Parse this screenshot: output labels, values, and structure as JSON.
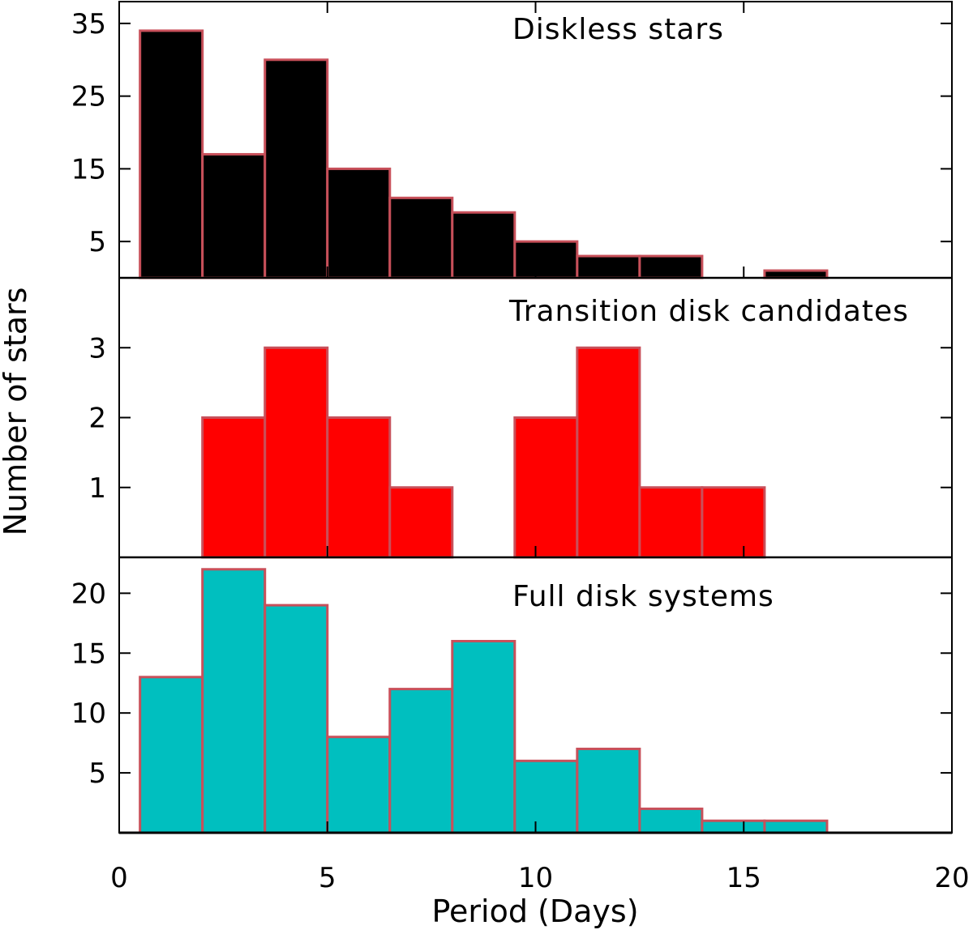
{
  "chart_data": {
    "type": "bar",
    "xlabel": "Period (Days)",
    "ylabel": "Number of stars",
    "xlim": [
      0,
      20
    ],
    "xticks": [
      "0",
      "5",
      "10",
      "15",
      "20"
    ],
    "bin_width": 1.5,
    "bin_edges": [
      0.5,
      2.0,
      3.5,
      5.0,
      6.5,
      8.0,
      9.5,
      11.0,
      12.5,
      14.0,
      15.5,
      17.0
    ],
    "bar_edge_color": "#c8505a",
    "panels": [
      {
        "title": "Diskless stars",
        "color": "#000000",
        "ylim": [
          0,
          38
        ],
        "yticks": [
          "5",
          "15",
          "25",
          "35"
        ],
        "bins": [
          {
            "start": 0.5,
            "value": 34
          },
          {
            "start": 2.0,
            "value": 17
          },
          {
            "start": 3.5,
            "value": 30
          },
          {
            "start": 5.0,
            "value": 15
          },
          {
            "start": 6.5,
            "value": 11
          },
          {
            "start": 8.0,
            "value": 9
          },
          {
            "start": 9.5,
            "value": 5
          },
          {
            "start": 11.0,
            "value": 3
          },
          {
            "start": 12.5,
            "value": 3
          },
          {
            "start": 15.5,
            "value": 1
          }
        ]
      },
      {
        "title": "Transition disk candidates",
        "color": "#ff0000",
        "ylim": [
          0,
          4
        ],
        "yticks": [
          "1",
          "2",
          "3"
        ],
        "bins": [
          {
            "start": 2.0,
            "value": 2
          },
          {
            "start": 3.5,
            "value": 3
          },
          {
            "start": 5.0,
            "value": 2
          },
          {
            "start": 6.5,
            "value": 1
          },
          {
            "start": 9.5,
            "value": 2
          },
          {
            "start": 11.0,
            "value": 3
          },
          {
            "start": 12.5,
            "value": 1
          },
          {
            "start": 14.0,
            "value": 1
          }
        ]
      },
      {
        "title": "Full disk systems",
        "color": "#00bfbf",
        "ylim": [
          0,
          23
        ],
        "yticks": [
          "5",
          "10",
          "15",
          "20"
        ],
        "bins": [
          {
            "start": 0.5,
            "value": 13
          },
          {
            "start": 2.0,
            "value": 22
          },
          {
            "start": 3.5,
            "value": 19
          },
          {
            "start": 5.0,
            "value": 8
          },
          {
            "start": 6.5,
            "value": 12
          },
          {
            "start": 8.0,
            "value": 16
          },
          {
            "start": 9.5,
            "value": 6
          },
          {
            "start": 11.0,
            "value": 7
          },
          {
            "start": 12.5,
            "value": 2
          },
          {
            "start": 14.0,
            "value": 1
          },
          {
            "start": 15.5,
            "value": 1
          }
        ]
      }
    ]
  }
}
